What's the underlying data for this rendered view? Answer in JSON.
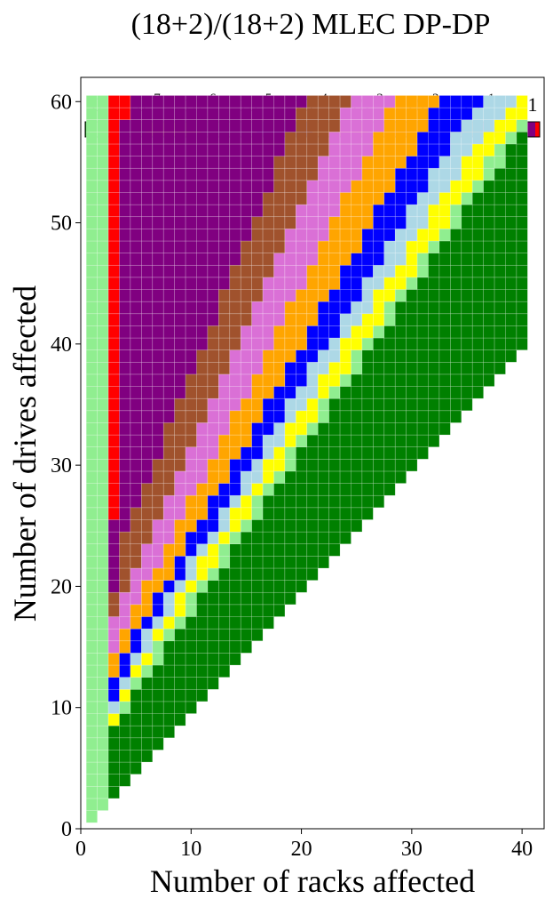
{
  "chart_data": {
    "type": "heatmap",
    "title": "(18+2)/(18+2) MLEC DP-DP",
    "xlabel": "Number of racks affected",
    "ylabel": "Number of drives affected",
    "xlim": [
      0,
      42
    ],
    "ylim": [
      0,
      62
    ],
    "x_ticks": [
      "0",
      "10",
      "20",
      "30",
      "40"
    ],
    "y_ticks": [
      "0",
      "10",
      "20",
      "30",
      "40",
      "50",
      "60"
    ],
    "x_range": [
      1,
      40
    ],
    "y_range": [
      1,
      60
    ],
    "colorbar": {
      "position": "top",
      "bins": [
        {
          "label": "0",
          "color": "#008000"
        },
        {
          "label_base": "10",
          "label_exp": "−7",
          "color": "#90ee90"
        },
        {
          "label_base": "10",
          "label_exp": "−6",
          "color": "#ffff00"
        },
        {
          "label_base": "10",
          "label_exp": "−5",
          "color": "#add8e6"
        },
        {
          "label_base": "10",
          "label_exp": "−4",
          "color": "#0000ff"
        },
        {
          "label_base": "10",
          "label_exp": "−3",
          "color": "#ffa500"
        },
        {
          "label_base": "10",
          "label_exp": "−2",
          "color": "#da70d6"
        },
        {
          "label_base": "10",
          "label_exp": "−1",
          "color": "#a0522d"
        },
        {
          "label": "1",
          "color": "#800080"
        },
        {
          "color": "#ff0000"
        }
      ]
    },
    "columns": [
      {
        "x": 1,
        "bands": [
          0,
          60,
          60,
          60,
          60,
          60,
          60,
          60,
          60,
          60
        ]
      },
      {
        "x": 2,
        "bands": [
          0,
          60,
          60,
          60,
          60,
          60,
          60,
          60,
          60,
          60
        ]
      },
      {
        "x": 3,
        "bands": [
          8,
          8,
          9,
          10,
          12,
          14,
          17,
          19,
          25,
          59
        ]
      },
      {
        "x": 4,
        "bands": [
          9,
          10,
          11,
          12,
          14,
          16,
          19,
          24,
          59,
          59
        ]
      },
      {
        "x": 5,
        "bands": [
          11,
          12,
          13,
          14,
          16,
          18,
          21,
          26,
          60,
          60
        ]
      },
      {
        "x": 6,
        "bands": [
          12,
          13,
          14,
          16,
          17,
          20,
          23,
          28,
          60,
          60
        ]
      },
      {
        "x": 7,
        "bands": [
          13,
          15,
          16,
          17,
          19,
          21,
          25,
          30,
          60,
          60
        ]
      },
      {
        "x": 8,
        "bands": [
          15,
          16,
          17,
          19,
          20,
          23,
          27,
          33,
          60,
          60
        ]
      },
      {
        "x": 9,
        "bands": [
          16,
          17,
          19,
          20,
          22,
          25,
          29,
          35,
          60,
          60
        ]
      },
      {
        "x": 10,
        "bands": [
          17,
          19,
          20,
          22,
          24,
          27,
          31,
          37,
          60,
          60
        ]
      },
      {
        "x": 11,
        "bands": [
          19,
          20,
          22,
          23,
          25,
          28,
          33,
          39,
          60,
          60
        ]
      },
      {
        "x": 12,
        "bands": [
          20,
          21,
          23,
          24,
          27,
          30,
          35,
          41,
          60,
          60
        ]
      },
      {
        "x": 13,
        "bands": [
          21,
          23,
          24,
          26,
          28,
          32,
          37,
          44,
          60,
          60
        ]
      },
      {
        "x": 14,
        "bands": [
          23,
          24,
          26,
          27,
          30,
          34,
          39,
          46,
          60,
          60
        ]
      },
      {
        "x": 15,
        "bands": [
          24,
          25,
          27,
          29,
          31,
          35,
          41,
          48,
          60,
          60
        ]
      },
      {
        "x": 16,
        "bands": [
          25,
          27,
          28,
          30,
          33,
          37,
          43,
          50,
          60,
          60
        ]
      },
      {
        "x": 17,
        "bands": [
          27,
          28,
          30,
          32,
          35,
          39,
          45,
          52,
          60,
          60
        ]
      },
      {
        "x": 18,
        "bands": [
          28,
          29,
          31,
          33,
          36,
          41,
          47,
          55,
          60,
          60
        ]
      },
      {
        "x": 19,
        "bands": [
          29,
          31,
          33,
          35,
          38,
          43,
          49,
          57,
          60,
          60
        ]
      },
      {
        "x": 20,
        "bands": [
          31,
          32,
          34,
          36,
          39,
          44,
          51,
          59,
          60,
          60
        ]
      },
      {
        "x": 21,
        "bands": [
          32,
          33,
          35,
          38,
          41,
          46,
          53,
          60,
          60,
          60
        ]
      },
      {
        "x": 22,
        "bands": [
          33,
          35,
          37,
          39,
          43,
          48,
          55,
          60,
          60,
          60
        ]
      },
      {
        "x": 23,
        "bands": [
          35,
          36,
          38,
          40,
          44,
          50,
          57,
          60,
          60,
          60
        ]
      },
      {
        "x": 24,
        "bands": [
          36,
          37,
          40,
          42,
          46,
          52,
          59,
          60,
          60,
          60
        ]
      },
      {
        "x": 25,
        "bands": [
          37,
          39,
          41,
          43,
          47,
          53,
          60,
          60,
          60,
          60
        ]
      },
      {
        "x": 26,
        "bands": [
          39,
          40,
          42,
          45,
          49,
          55,
          60,
          60,
          60,
          60
        ]
      },
      {
        "x": 27,
        "bands": [
          40,
          41,
          44,
          46,
          51,
          57,
          60,
          60,
          60,
          60
        ]
      },
      {
        "x": 28,
        "bands": [
          41,
          43,
          45,
          48,
          52,
          59,
          60,
          60,
          60,
          60
        ]
      },
      {
        "x": 29,
        "bands": [
          43,
          44,
          46,
          49,
          54,
          60,
          60,
          60,
          60,
          60
        ]
      },
      {
        "x": 30,
        "bands": [
          44,
          45,
          48,
          51,
          55,
          60,
          60,
          60,
          60,
          60
        ]
      },
      {
        "x": 31,
        "bands": [
          45,
          47,
          49,
          52,
          57,
          60,
          60,
          60,
          60,
          60
        ]
      },
      {
        "x": 32,
        "bands": [
          47,
          48,
          51,
          54,
          59,
          60,
          60,
          60,
          60,
          60
        ]
      },
      {
        "x": 33,
        "bands": [
          48,
          49,
          52,
          55,
          60,
          60,
          60,
          60,
          60,
          60
        ]
      },
      {
        "x": 34,
        "bands": [
          49,
          51,
          53,
          57,
          60,
          60,
          60,
          60,
          60,
          60
        ]
      },
      {
        "x": 35,
        "bands": [
          51,
          52,
          55,
          58,
          60,
          60,
          60,
          60,
          60,
          60
        ]
      },
      {
        "x": 36,
        "bands": [
          52,
          53,
          56,
          59,
          60,
          60,
          60,
          60,
          60,
          60
        ]
      },
      {
        "x": 37,
        "bands": [
          53,
          55,
          57,
          60,
          60,
          60,
          60,
          60,
          60,
          60
        ]
      },
      {
        "x": 38,
        "bands": [
          54,
          56,
          58,
          60,
          60,
          60,
          60,
          60,
          60,
          60
        ]
      },
      {
        "x": 39,
        "bands": [
          56,
          57,
          59,
          60,
          60,
          60,
          60,
          60,
          60,
          60
        ]
      },
      {
        "x": 40,
        "bands": [
          57,
          58,
          60,
          60,
          60,
          60,
          60,
          60,
          60,
          60
        ]
      }
    ],
    "red_cells": [
      [
        3,
        60
      ],
      [
        4,
        60
      ],
      [
        4,
        59
      ]
    ]
  }
}
